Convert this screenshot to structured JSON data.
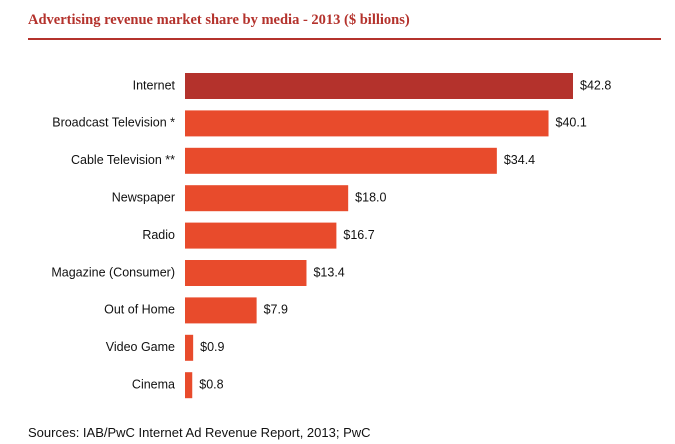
{
  "title": "Advertising revenue market share by media - 2013 ($ billions)",
  "source": "Sources: IAB/PwC Internet Ad Revenue Report, 2013; PwC",
  "colors": {
    "highlight": "#b4322c",
    "bar": "#e84b2c",
    "accent": "#b4322c"
  },
  "chart_data": {
    "type": "bar",
    "orientation": "horizontal",
    "title": "Advertising revenue market share by media - 2013 ($ billions)",
    "categories": [
      "Internet",
      "Broadcast Television *",
      "Cable Television **",
      "Newspaper",
      "Radio",
      "Magazine (Consumer)",
      "Out of Home",
      "Video Game",
      "Cinema"
    ],
    "values": [
      42.8,
      40.1,
      34.4,
      18.0,
      16.7,
      13.4,
      7.9,
      0.9,
      0.8
    ],
    "value_labels": [
      "$42.8",
      "$40.1",
      "$34.4",
      "$18.0",
      "$16.7",
      "$13.4",
      "$7.9",
      "$0.9",
      "$0.8"
    ],
    "xlim": [
      0,
      42.8
    ],
    "highlight_index": 0,
    "grid": false,
    "legend": "none"
  }
}
